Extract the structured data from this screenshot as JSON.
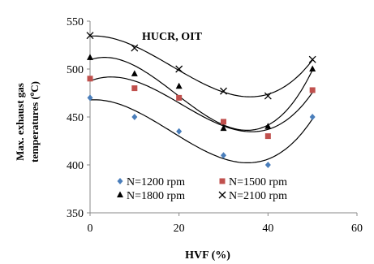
{
  "chart_data": {
    "type": "scatter",
    "title": "HUCR, OIT",
    "xlabel": "HVF (%)",
    "ylabel_line1": "Max. exhaust gas",
    "ylabel_line2": "temperatures (",
    "ylabel_degree": "o",
    "ylabel_unit_tail": "C)",
    "xlim": [
      0,
      60
    ],
    "ylim": [
      350,
      550
    ],
    "xticks": [
      "0",
      "20",
      "40",
      "60"
    ],
    "yticks": [
      "350",
      "400",
      "450",
      "500",
      "550"
    ],
    "grid": false,
    "legend_position": "bottom",
    "x": [
      0,
      10,
      20,
      30,
      40,
      50
    ],
    "series": [
      {
        "name": "N=1200 rpm",
        "marker": "diamond",
        "color": "#4a7ebb",
        "values": [
          470,
          450,
          435,
          410,
          400,
          450
        ]
      },
      {
        "name": "N=1500 rpm",
        "marker": "square",
        "color": "#c0504d",
        "values": [
          490,
          480,
          470,
          445,
          430,
          478
        ]
      },
      {
        "name": "N=1800 rpm",
        "marker": "triangle",
        "color": "#000000",
        "values": [
          512,
          495,
          482,
          438,
          440,
          500
        ]
      },
      {
        "name": "N=2100 rpm",
        "marker": "x",
        "color": "#000000",
        "values": [
          535,
          522,
          500,
          477,
          472,
          510
        ]
      }
    ]
  }
}
